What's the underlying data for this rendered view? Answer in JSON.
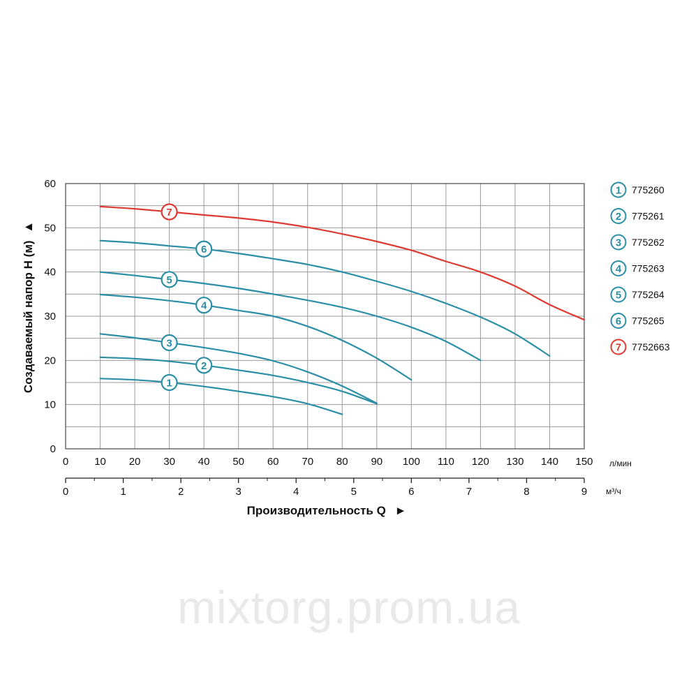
{
  "chart_data": {
    "type": "line",
    "ylabel": "Создаваемый напор H (м)",
    "xlabel": "Производительность Q",
    "y_ticks": [
      "0",
      "10",
      "20",
      "30",
      "40",
      "50",
      "60"
    ],
    "ylim": [
      0,
      60
    ],
    "x_lpm_ticks": [
      "0",
      "10",
      "20",
      "30",
      "40",
      "50",
      "60",
      "70",
      "80",
      "90",
      "100",
      "110",
      "120",
      "130",
      "140",
      "150"
    ],
    "x_lpm_unit": "л/мин",
    "xlim_lpm": [
      0,
      150
    ],
    "x_m3h_ticks": [
      "0",
      "1",
      "2",
      "3",
      "4",
      "5",
      "6",
      "7",
      "8",
      "9"
    ],
    "x_m3h_unit": "м³/ч",
    "grid": true,
    "legend_position": "right",
    "arrow_glyph": "▲",
    "arrow_glyph_x": "►",
    "series": [
      {
        "marker": "1",
        "name": "775260",
        "color": "#2a8fa6",
        "marker_x": 30,
        "points": [
          [
            10,
            15.9
          ],
          [
            20,
            15.6
          ],
          [
            30,
            15.0
          ],
          [
            40,
            14.1
          ],
          [
            50,
            13.0
          ],
          [
            60,
            11.8
          ],
          [
            70,
            10.2
          ],
          [
            80,
            7.8
          ]
        ]
      },
      {
        "marker": "2",
        "name": "775261",
        "color": "#2a8fa6",
        "marker_x": 40,
        "points": [
          [
            10,
            20.7
          ],
          [
            20,
            20.4
          ],
          [
            30,
            19.8
          ],
          [
            40,
            18.9
          ],
          [
            50,
            17.8
          ],
          [
            60,
            16.6
          ],
          [
            70,
            15.0
          ],
          [
            80,
            13.0
          ],
          [
            90,
            10.2
          ]
        ]
      },
      {
        "marker": "3",
        "name": "775262",
        "color": "#2a8fa6",
        "marker_x": 30,
        "points": [
          [
            10,
            26.0
          ],
          [
            20,
            25.1
          ],
          [
            30,
            24.0
          ],
          [
            40,
            22.9
          ],
          [
            50,
            21.6
          ],
          [
            60,
            19.9
          ],
          [
            70,
            17.4
          ],
          [
            80,
            14.2
          ],
          [
            90,
            10.3
          ]
        ]
      },
      {
        "marker": "4",
        "name": "775263",
        "color": "#2a8fa6",
        "marker_x": 40,
        "points": [
          [
            10,
            34.9
          ],
          [
            20,
            34.3
          ],
          [
            30,
            33.5
          ],
          [
            40,
            32.5
          ],
          [
            50,
            31.3
          ],
          [
            60,
            30.0
          ],
          [
            70,
            27.7
          ],
          [
            80,
            24.5
          ],
          [
            90,
            20.5
          ],
          [
            100,
            15.6
          ]
        ]
      },
      {
        "marker": "5",
        "name": "775264",
        "color": "#2a8fa6",
        "marker_x": 30,
        "points": [
          [
            10,
            40.0
          ],
          [
            20,
            39.2
          ],
          [
            30,
            38.3
          ],
          [
            40,
            37.4
          ],
          [
            50,
            36.3
          ],
          [
            60,
            35.0
          ],
          [
            70,
            33.6
          ],
          [
            80,
            32.0
          ],
          [
            90,
            30.0
          ],
          [
            100,
            27.5
          ],
          [
            110,
            24.3
          ],
          [
            120,
            20.0
          ]
        ]
      },
      {
        "marker": "6",
        "name": "775265",
        "color": "#2a8fa6",
        "marker_x": 40,
        "points": [
          [
            10,
            47.1
          ],
          [
            20,
            46.6
          ],
          [
            30,
            45.9
          ],
          [
            40,
            45.2
          ],
          [
            50,
            44.2
          ],
          [
            60,
            43.0
          ],
          [
            70,
            41.7
          ],
          [
            80,
            40.0
          ],
          [
            90,
            37.9
          ],
          [
            100,
            35.6
          ],
          [
            110,
            32.9
          ],
          [
            120,
            29.8
          ],
          [
            130,
            26.0
          ],
          [
            140,
            21.0
          ]
        ]
      },
      {
        "marker": "7",
        "name": "7752663",
        "color": "#dd3b31",
        "marker_x": 30,
        "points": [
          [
            10,
            54.8
          ],
          [
            20,
            54.3
          ],
          [
            30,
            53.6
          ],
          [
            40,
            52.9
          ],
          [
            50,
            52.2
          ],
          [
            60,
            51.3
          ],
          [
            70,
            50.1
          ],
          [
            80,
            48.6
          ],
          [
            90,
            46.9
          ],
          [
            100,
            44.9
          ],
          [
            110,
            42.4
          ],
          [
            120,
            40.0
          ],
          [
            130,
            36.8
          ],
          [
            140,
            32.6
          ],
          [
            150,
            29.2
          ]
        ]
      }
    ]
  },
  "watermark": "mixtorg.prom.ua"
}
